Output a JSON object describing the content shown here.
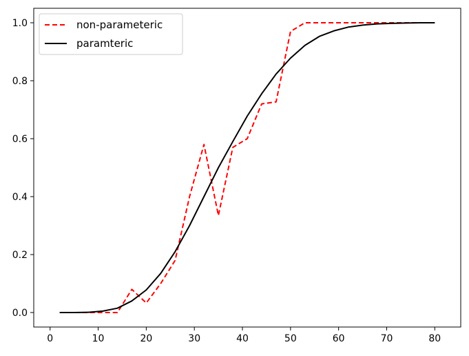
{
  "chart_data": {
    "type": "line",
    "title": "",
    "xlabel": "",
    "ylabel": "",
    "xlim": [
      -3.4,
      85.4
    ],
    "ylim": [
      -0.05,
      1.05
    ],
    "x_ticks": [
      0,
      10,
      20,
      30,
      40,
      50,
      60,
      70,
      80
    ],
    "y_ticks": [
      0.0,
      0.2,
      0.4,
      0.6,
      0.8,
      1.0
    ],
    "x_tick_labels": [
      "0",
      "10",
      "20",
      "30",
      "40",
      "50",
      "60",
      "70",
      "80"
    ],
    "y_tick_labels": [
      "0.0",
      "0.2",
      "0.4",
      "0.6",
      "0.8",
      "1.0"
    ],
    "grid": false,
    "legend_position": "top-left",
    "series": [
      {
        "name": "non-parameteric",
        "color": "#ff0000",
        "style": "dashed",
        "x": [
          2,
          5,
          8,
          11,
          14,
          17,
          20,
          23,
          26,
          29,
          32,
          35,
          38,
          41,
          44,
          47,
          50,
          53,
          56,
          59,
          62,
          65,
          68,
          71,
          74,
          77,
          80
        ],
        "y": [
          0.0,
          0.0,
          0.0,
          0.0,
          0.0,
          0.08,
          0.033,
          0.1,
          0.18,
          0.4,
          0.58,
          0.335,
          0.57,
          0.6,
          0.72,
          0.727,
          0.97,
          1.0,
          1.0,
          1.0,
          1.0,
          1.0,
          1.0,
          1.0,
          1.0,
          1.0,
          1.0
        ]
      },
      {
        "name": "paramteric",
        "color": "#000000",
        "style": "solid",
        "x": [
          2,
          5,
          8,
          11,
          14,
          17,
          20,
          23,
          26,
          29,
          32,
          35,
          38,
          41,
          44,
          47,
          50,
          53,
          56,
          59,
          62,
          65,
          68,
          71,
          74,
          77,
          80
        ],
        "y": [
          0.0,
          0.0,
          0.001,
          0.005,
          0.015,
          0.04,
          0.078,
          0.135,
          0.21,
          0.3,
          0.4,
          0.5,
          0.59,
          0.678,
          0.755,
          0.823,
          0.878,
          0.922,
          0.953,
          0.972,
          0.985,
          0.992,
          0.996,
          0.998,
          0.999,
          1.0,
          1.0
        ]
      }
    ]
  }
}
